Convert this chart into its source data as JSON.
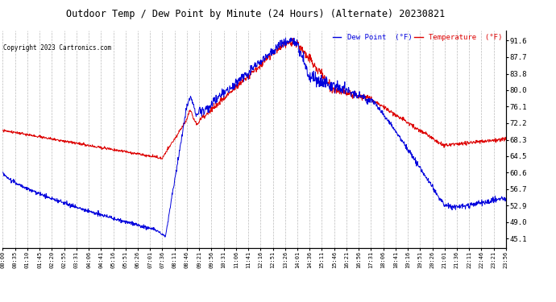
{
  "title": "Outdoor Temp / Dew Point by Minute (24 Hours) (Alternate) 20230821",
  "copyright": "Copyright 2023 Cartronics.com",
  "ylabel_right_ticks": [
    45.1,
    49.0,
    52.9,
    56.7,
    60.6,
    64.5,
    68.3,
    72.2,
    76.1,
    80.0,
    83.8,
    87.7,
    91.6
  ],
  "ylim": [
    43.0,
    94.0
  ],
  "temp_color": "#0000dd",
  "dewpoint_color": "#dd0000",
  "background_color": "#ffffff",
  "grid_color": "#bbbbbb",
  "title_color": "#000000",
  "copyright_color": "#000000",
  "legend_temp_color": "#dd0000",
  "legend_dew_color": "#0000dd",
  "x_tick_labels": [
    "00:00",
    "00:35",
    "01:10",
    "01:45",
    "02:20",
    "02:55",
    "03:31",
    "04:06",
    "04:41",
    "05:16",
    "05:51",
    "06:26",
    "07:01",
    "07:36",
    "08:11",
    "08:46",
    "09:21",
    "09:56",
    "10:31",
    "11:06",
    "11:41",
    "12:16",
    "12:51",
    "13:26",
    "14:01",
    "14:36",
    "15:11",
    "15:46",
    "16:21",
    "16:56",
    "17:31",
    "18:06",
    "18:41",
    "19:16",
    "19:51",
    "20:26",
    "21:01",
    "21:36",
    "22:11",
    "22:46",
    "23:21",
    "23:56"
  ],
  "n_minutes": 1440
}
